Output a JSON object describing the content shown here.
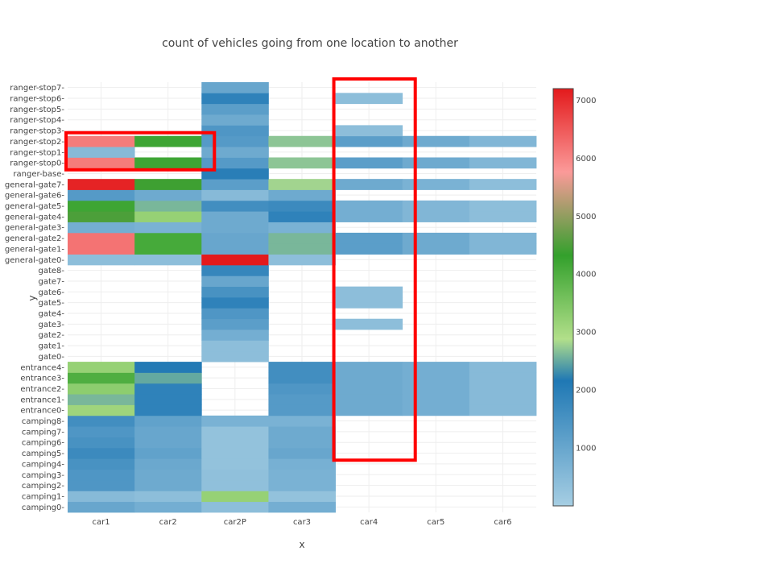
{
  "chart_data": {
    "type": "heatmap",
    "title": "count of vehicles going from one location to another",
    "xlabel": "x",
    "ylabel": "y",
    "x_categories": [
      "car1",
      "car2",
      "car2P",
      "car3",
      "car4",
      "car5",
      "car6"
    ],
    "y_categories": [
      "camping0",
      "camping1",
      "camping2",
      "camping3",
      "camping4",
      "camping5",
      "camping6",
      "camping7",
      "camping8",
      "entrance0",
      "entrance1",
      "entrance2",
      "entrance3",
      "entrance4",
      "gate0",
      "gate1",
      "gate2",
      "gate3",
      "gate4",
      "gate5",
      "gate6",
      "gate7",
      "gate8",
      "general-gate0",
      "general-gate1",
      "general-gate2",
      "general-gate3",
      "general-gate4",
      "general-gate5",
      "general-gate6",
      "general-gate7",
      "ranger-base",
      "ranger-stop0",
      "ranger-stop1",
      "ranger-stop2",
      "ranger-stop3",
      "ranger-stop4",
      "ranger-stop5",
      "ranger-stop6",
      "ranger-stop7"
    ],
    "values": [
      [
        1000,
        800,
        400,
        800,
        null,
        null,
        null
      ],
      [
        500,
        400,
        3200,
        300,
        null,
        null,
        null
      ],
      [
        1400,
        900,
        350,
        700,
        null,
        null,
        null
      ],
      [
        1400,
        900,
        350,
        700,
        null,
        null,
        null
      ],
      [
        1500,
        950,
        300,
        750,
        null,
        null,
        null
      ],
      [
        1700,
        1100,
        300,
        1000,
        null,
        null,
        null
      ],
      [
        1500,
        1000,
        300,
        900,
        null,
        null,
        null
      ],
      [
        1400,
        1000,
        300,
        900,
        null,
        null,
        null
      ],
      [
        1600,
        1100,
        700,
        700,
        null,
        null,
        null
      ],
      [
        3100,
        1900,
        null,
        1300,
        900,
        800,
        500
      ],
      [
        2600,
        1900,
        null,
        1300,
        900,
        800,
        500
      ],
      [
        3300,
        1900,
        null,
        1400,
        900,
        800,
        500
      ],
      [
        4000,
        2500,
        null,
        1600,
        900,
        800,
        500
      ],
      [
        3200,
        2100,
        null,
        1600,
        900,
        800,
        500
      ],
      [
        null,
        null,
        400,
        null,
        null,
        null,
        null
      ],
      [
        null,
        null,
        400,
        null,
        null,
        null,
        null
      ],
      [
        null,
        null,
        800,
        null,
        null,
        null,
        null
      ],
      [
        null,
        null,
        1200,
        null,
        400,
        null,
        null
      ],
      [
        null,
        null,
        1400,
        null,
        null,
        null,
        null
      ],
      [
        null,
        null,
        1900,
        null,
        400,
        null,
        null
      ],
      [
        null,
        null,
        1500,
        null,
        400,
        null,
        null
      ],
      [
        null,
        null,
        1000,
        null,
        null,
        null,
        null
      ],
      [
        null,
        null,
        1800,
        null,
        null,
        null,
        null
      ],
      [
        400,
        400,
        7200,
        400,
        null,
        null,
        null
      ],
      [
        6200,
        4100,
        1000,
        2600,
        1200,
        900,
        600
      ],
      [
        6200,
        4100,
        1000,
        2600,
        1200,
        900,
        600
      ],
      [
        800,
        700,
        900,
        700,
        null,
        null,
        null
      ],
      [
        4500,
        3200,
        900,
        1900,
        800,
        600,
        400
      ],
      [
        4200,
        2600,
        1600,
        1700,
        800,
        600,
        400
      ],
      [
        1300,
        900,
        500,
        900,
        null,
        null,
        null
      ],
      [
        7100,
        4400,
        1200,
        2800,
        900,
        700,
        400
      ],
      [
        null,
        null,
        2000,
        null,
        null,
        null,
        null
      ],
      [
        6100,
        4200,
        1300,
        2700,
        1200,
        900,
        600
      ],
      [
        500,
        null,
        900,
        null,
        null,
        null,
        null
      ],
      [
        6100,
        4200,
        1300,
        2700,
        1200,
        900,
        600
      ],
      [
        null,
        null,
        1400,
        null,
        400,
        null,
        null
      ],
      [
        null,
        null,
        900,
        null,
        null,
        null,
        null
      ],
      [
        null,
        null,
        1200,
        null,
        null,
        null,
        null
      ],
      [
        null,
        null,
        1900,
        null,
        400,
        null,
        null
      ],
      [
        null,
        null,
        1000,
        null,
        null,
        null,
        null
      ]
    ],
    "colorscale": {
      "min": 0,
      "max": 7200,
      "stops": [
        [
          0.0,
          "#a6cee3"
        ],
        [
          0.3,
          "#1f78b4"
        ],
        [
          0.4,
          "#b2df8a"
        ],
        [
          0.6,
          "#33a02c"
        ],
        [
          0.8,
          "#fb9a99"
        ],
        [
          1.0,
          "#e31a1c"
        ]
      ],
      "tick_values": [
        1000,
        2000,
        3000,
        4000,
        5000,
        6000,
        7000
      ],
      "tick_labels": [
        "1000",
        "2000",
        "3000",
        "4000",
        "5000",
        "6000",
        "7000"
      ]
    },
    "annotations": [
      {
        "shape": "rectangle",
        "color": "#ff0000",
        "x_from": "car1",
        "x_to": "car2",
        "y_from": "ranger-stop0",
        "y_to": "ranger-stop2"
      },
      {
        "shape": "rectangle",
        "color": "#ff0000",
        "x_from": "car4",
        "x_to": "car4",
        "y_from": "camping5",
        "y_to": "ranger-stop7"
      }
    ],
    "grid": true
  }
}
